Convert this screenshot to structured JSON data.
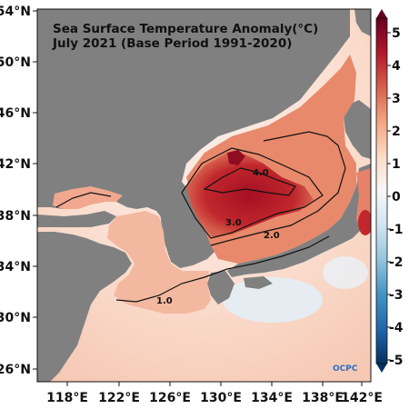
{
  "title": {
    "line1": "Sea Surface Temperature Anomaly(°C)",
    "line2": "July 2021 (Base Period 1991-2020)"
  },
  "lat_ticks": [
    "54°N",
    "50°N",
    "46°N",
    "42°N",
    "38°N",
    "34°N",
    "30°N",
    "26°N"
  ],
  "lon_ticks": [
    "118°E",
    "122°E",
    "126°E",
    "130°E",
    "134°E",
    "138°E",
    "142°E"
  ],
  "colorbar": {
    "ticks": [
      "5",
      "4",
      "3",
      "2",
      "1",
      "0",
      "-1",
      "-2",
      "-3",
      "-4",
      "-5"
    ],
    "colors": [
      "#67001f",
      "#b2182b",
      "#d6604d",
      "#f4a582",
      "#fddbc7",
      "#f7f7f7",
      "#d1e5f0",
      "#92c5de",
      "#4393c3",
      "#2166ac",
      "#053061"
    ]
  },
  "contour_labels": [
    "4.0",
    "3.0",
    "2.0",
    "1.0"
  ],
  "logo": "OCPC",
  "colors": {
    "land": "#808080",
    "hot": "#b2182b",
    "warm": "#e07a5f",
    "mild": "#f4b69c",
    "pale": "#fbe3d6"
  }
}
